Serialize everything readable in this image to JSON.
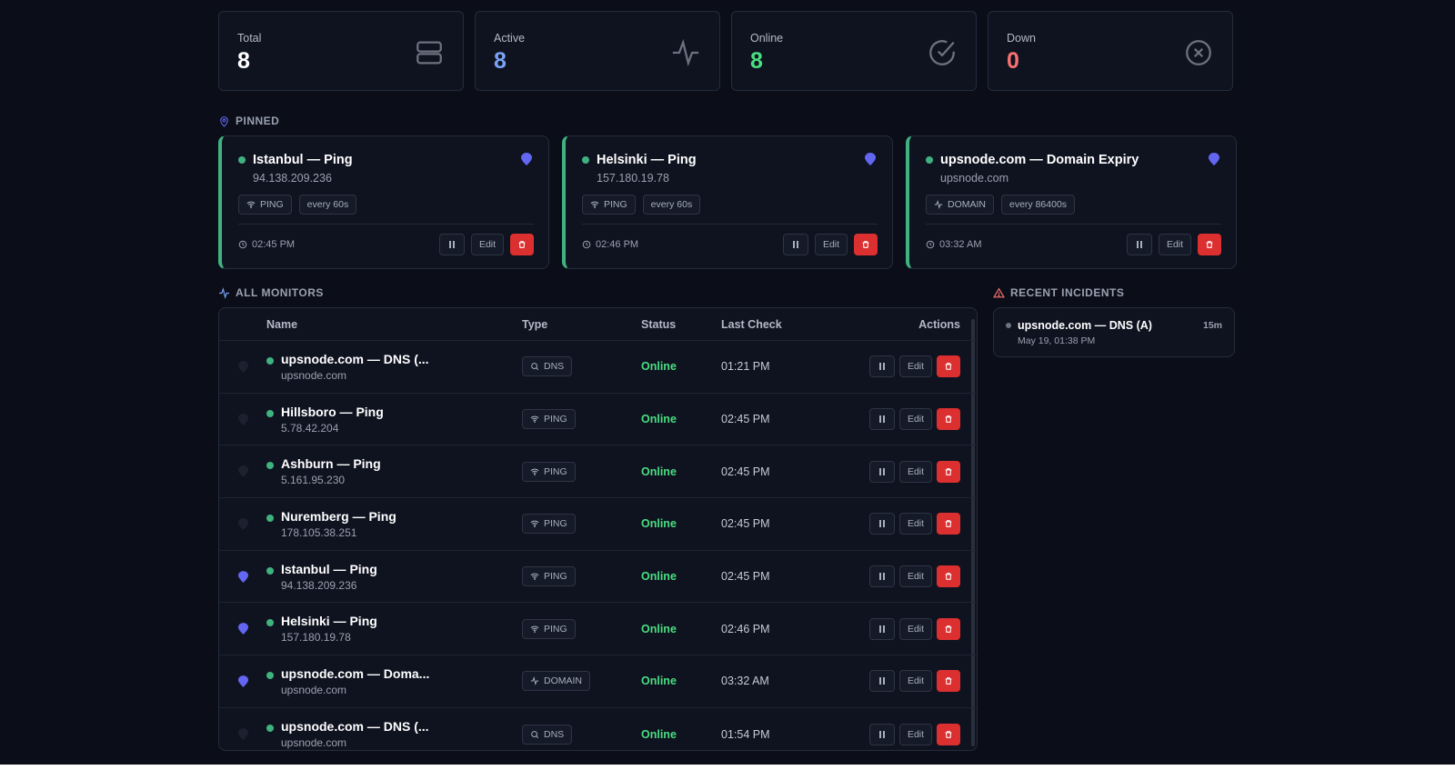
{
  "stats": [
    {
      "label": "Total",
      "value": "8",
      "icon": "server-icon"
    },
    {
      "label": "Active",
      "value": "8",
      "icon": "activity-icon"
    },
    {
      "label": "Online",
      "value": "8",
      "icon": "check-circle-icon"
    },
    {
      "label": "Down",
      "value": "0",
      "icon": "x-circle-icon"
    }
  ],
  "colors": {
    "online": "#4ade80",
    "active": "#7aa2f7",
    "down": "#f87171",
    "pin": "#6366f1",
    "delete": "#dc2f2f",
    "card_accent": "#3fb27f"
  },
  "pinned_header": "PINNED",
  "pinned": [
    {
      "title": "Istanbul — Ping",
      "sub": "94.138.209.236",
      "type": "PING",
      "interval": "every 60s",
      "time": "02:45 PM",
      "edit": "Edit"
    },
    {
      "title": "Helsinki — Ping",
      "sub": "157.180.19.78",
      "type": "PING",
      "interval": "every 60s",
      "time": "02:46 PM",
      "edit": "Edit"
    },
    {
      "title": "upsnode.com — Domain Expiry",
      "sub": "upsnode.com",
      "type": "DOMAIN",
      "interval": "every 86400s",
      "time": "03:32 AM",
      "edit": "Edit"
    }
  ],
  "monitors_header": "ALL MONITORS",
  "columns": {
    "name": "Name",
    "type": "Type",
    "status": "Status",
    "last": "Last Check",
    "actions": "Actions"
  },
  "monitors": [
    {
      "pinned": false,
      "name": "upsnode.com — DNS (...",
      "sub": "upsnode.com",
      "type": "DNS",
      "status": "Online",
      "last": "01:21 PM",
      "edit": "Edit"
    },
    {
      "pinned": false,
      "name": "Hillsboro — Ping",
      "sub": "5.78.42.204",
      "type": "PING",
      "status": "Online",
      "last": "02:45 PM",
      "edit": "Edit"
    },
    {
      "pinned": false,
      "name": "Ashburn — Ping",
      "sub": "5.161.95.230",
      "type": "PING",
      "status": "Online",
      "last": "02:45 PM",
      "edit": "Edit"
    },
    {
      "pinned": false,
      "name": "Nuremberg — Ping",
      "sub": "178.105.38.251",
      "type": "PING",
      "status": "Online",
      "last": "02:45 PM",
      "edit": "Edit"
    },
    {
      "pinned": true,
      "name": "Istanbul — Ping",
      "sub": "94.138.209.236",
      "type": "PING",
      "status": "Online",
      "last": "02:45 PM",
      "edit": "Edit"
    },
    {
      "pinned": true,
      "name": "Helsinki — Ping",
      "sub": "157.180.19.78",
      "type": "PING",
      "status": "Online",
      "last": "02:46 PM",
      "edit": "Edit"
    },
    {
      "pinned": true,
      "name": "upsnode.com — Doma...",
      "sub": "upsnode.com",
      "type": "DOMAIN",
      "status": "Online",
      "last": "03:32 AM",
      "edit": "Edit"
    },
    {
      "pinned": false,
      "name": "upsnode.com — DNS (...",
      "sub": "upsnode.com",
      "type": "DNS",
      "status": "Online",
      "last": "01:54 PM",
      "edit": "Edit"
    }
  ],
  "incidents_header": "RECENT INCIDENTS",
  "incidents": [
    {
      "title": "upsnode.com — DNS (A)",
      "date": "May 19, 01:38 PM",
      "ago": "15m"
    }
  ]
}
